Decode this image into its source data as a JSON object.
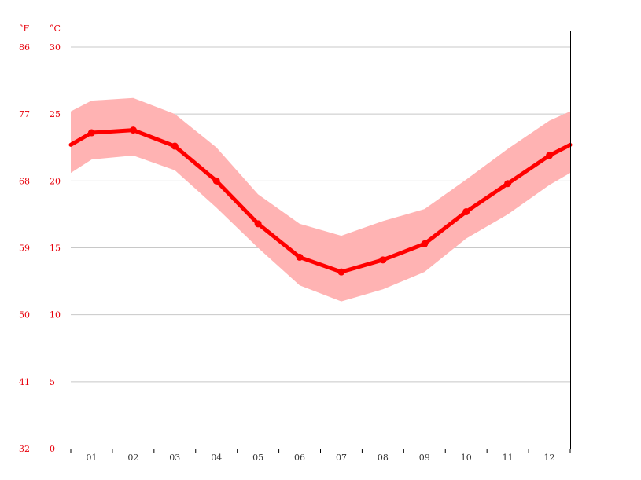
{
  "chart_data": {
    "type": "line",
    "title": "",
    "unit_left": "°F",
    "unit_right": "°C",
    "categories": [
      "01",
      "02",
      "03",
      "04",
      "05",
      "06",
      "07",
      "08",
      "09",
      "10",
      "11",
      "12"
    ],
    "series": [
      {
        "values": [
          23.6,
          23.8,
          22.6,
          20.0,
          16.8,
          14.3,
          13.2,
          14.1,
          15.3,
          17.7,
          19.8,
          21.9
        ]
      }
    ],
    "range_band": {
      "upper": [
        26.0,
        26.2,
        25.0,
        22.5,
        19.0,
        16.8,
        15.9,
        17.0,
        17.9,
        20.1,
        22.4,
        24.5
      ],
      "lower": [
        21.6,
        21.9,
        20.8,
        18.0,
        15.0,
        12.2,
        11.0,
        11.9,
        13.2,
        15.7,
        17.5,
        19.7
      ],
      "edge_start": {
        "value": 22.7,
        "upper": 25.2,
        "lower": 20.6
      },
      "edge_end": {
        "value": 22.7,
        "upper": 25.2,
        "lower": 20.6
      }
    },
    "y_ticks_celsius": [
      "0",
      "5",
      "10",
      "15",
      "20",
      "25",
      "30"
    ],
    "y_ticks_fahrenheit": [
      "32",
      "41",
      "50",
      "59",
      "68",
      "77",
      "86"
    ],
    "ylim": [
      0,
      30
    ],
    "grid": true,
    "colors": {
      "line": "#ff0000",
      "band": "#ffb3b3",
      "label": "#e8000b",
      "grid": "#c8c8c8"
    }
  }
}
